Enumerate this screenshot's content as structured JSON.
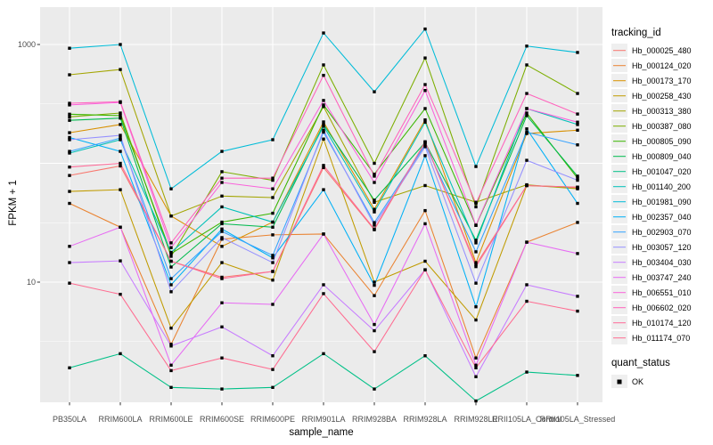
{
  "figure": {
    "background": "#FFFFFF"
  },
  "panel": {
    "fill": "#EBEBEB",
    "grid_major_color": "#FFFFFF",
    "grid_minor_color": "#FFFFFF",
    "tick_color": "#333333",
    "tick_label_color": "#4D4D4D"
  },
  "chart_data": {
    "type": "line",
    "title": "",
    "xlabel": "sample_name",
    "ylabel": "FPKM + 1",
    "x_scale": "categorical",
    "y_scale": "log10",
    "ylim": [
      0.95,
      2000
    ],
    "y_tick_values": [
      10,
      1000
    ],
    "y_tick_labels": [
      "10",
      "1000"
    ],
    "y_major_gridlines": [
      10,
      100,
      1000
    ],
    "y_minor_gridlines": [
      3.162,
      31.62,
      316.2
    ],
    "grid": "on",
    "legend_position": "right",
    "legend_title": "tracking_id",
    "point_marker": {
      "shape": "square",
      "color": "#000000",
      "size": 3.4
    },
    "categories": [
      "PB350LA",
      "RRIM600LA",
      "RRIM600LE",
      "RRIM600SE",
      "RRIM600PE",
      "RRIM901LA",
      "RRIM928BA",
      "RRIM928LA",
      "RRIM928LE",
      "RRII105LA_Control",
      "RRII105LA_Stressed"
    ],
    "series": [
      {
        "name": "Hb_000025_480",
        "color": "#F8766D",
        "values": [
          79,
          95,
          15,
          11,
          12.3,
          92,
          27.6,
          150,
          14,
          65,
          62
        ]
      },
      {
        "name": "Hb_000124_020",
        "color": "#EA8331",
        "values": [
          46,
          29,
          3.0,
          23,
          25,
          25.4,
          7.7,
          40,
          2.3,
          21.7,
          31.8
        ]
      },
      {
        "name": "Hb_000173_170",
        "color": "#D89000",
        "values": [
          181,
          212,
          36,
          20,
          32,
          223,
          41,
          232,
          14.6,
          178,
          190
        ]
      },
      {
        "name": "Hb_000258_430",
        "color": "#C09B00",
        "values": [
          58,
          60,
          4.1,
          14.6,
          10.4,
          160,
          10,
          15,
          4.8,
          65,
          63
        ]
      },
      {
        "name": "Hb_000313_380",
        "color": "#A3A500",
        "values": [
          556,
          616,
          36,
          53,
          51.5,
          300,
          47,
          65,
          47,
          66,
          61
        ]
      },
      {
        "name": "Hb_000387_080",
        "color": "#7CAE00",
        "values": [
          246,
          265,
          16.5,
          85,
          72,
          673,
          100,
          770,
          43,
          673,
          387
        ]
      },
      {
        "name": "Hb_000805_090",
        "color": "#39B600",
        "values": [
          259,
          252,
          17.4,
          32,
          38,
          310,
          81,
          289,
          30,
          265,
          75
        ]
      },
      {
        "name": "Hb_000809_040",
        "color": "#00BB4E",
        "values": [
          230,
          240,
          13.4,
          31,
          29,
          212,
          49,
          150,
          22.5,
          252,
          78
        ]
      },
      {
        "name": "Hb_001047_020",
        "color": "#00C087",
        "values": [
          1.9,
          2.5,
          1.3,
          1.26,
          1.3,
          2.5,
          1.26,
          2.4,
          1.0,
          1.75,
          1.64
        ]
      },
      {
        "name": "Hb_001140_200",
        "color": "#00C0B8",
        "values": [
          122,
          158,
          17.8,
          43,
          32,
          205,
          39,
          222,
          21.4,
          289,
          212
        ]
      },
      {
        "name": "Hb_001981_090",
        "color": "#00BCD8",
        "values": [
          930,
          1000,
          61,
          126,
          158,
          1250,
          400,
          1350,
          94,
          970,
          857
        ]
      },
      {
        "name": "Hb_002357_040",
        "color": "#00B0F6",
        "values": [
          165,
          126,
          9.5,
          28,
          16,
          60,
          9.4,
          116,
          6.2,
          195,
          46
        ]
      },
      {
        "name": "Hb_002903_070",
        "color": "#35A2FF",
        "values": [
          126,
          163,
          10.7,
          26.7,
          16.8,
          183,
          31.7,
          143,
          18,
          183,
          143
        ]
      },
      {
        "name": "Hb_003057_120",
        "color": "#9590FF",
        "values": [
          158,
          172,
          8.3,
          23.7,
          14.6,
          190,
          30.2,
          138,
          9.8,
          106,
          72
        ]
      },
      {
        "name": "Hb_003404_030",
        "color": "#C77CFF",
        "values": [
          14.6,
          15.1,
          2.9,
          4.2,
          2.4,
          9.5,
          3.9,
          12.7,
          1.6,
          9.5,
          7.6
        ]
      },
      {
        "name": "Hb_003747_240",
        "color": "#E76BF3",
        "values": [
          20,
          29,
          2.0,
          6.7,
          6.5,
          25.4,
          4.4,
          31,
          2.0,
          21.7,
          17.4
        ]
      },
      {
        "name": "Hb_006551_010",
        "color": "#FA62DB",
        "values": [
          310,
          325,
          19.5,
          69,
          61,
          338,
          69,
          410,
          30.2,
          289,
          222
        ]
      },
      {
        "name": "Hb_006602_020",
        "color": "#FF62BC",
        "values": [
          320,
          330,
          21.4,
          75,
          75,
          550,
          78,
          460,
          46,
          387,
          260
        ]
      },
      {
        "name": "Hb_010174_120",
        "color": "#FF6A98",
        "values": [
          93,
          100,
          15,
          10.7,
          12.3,
          96,
          28,
          152,
          13.5,
          65,
          63
        ]
      },
      {
        "name": "Hb_011174_070",
        "color": "#FF6C91",
        "values": [
          9.8,
          7.9,
          1.8,
          2.3,
          1.84,
          8.0,
          2.6,
          12.7,
          1.9,
          6.9,
          5.7
        ]
      }
    ],
    "legend2": {
      "title": "quant_status",
      "entries": [
        {
          "label": "OK",
          "marker": "square",
          "color": "#000000"
        }
      ]
    }
  }
}
